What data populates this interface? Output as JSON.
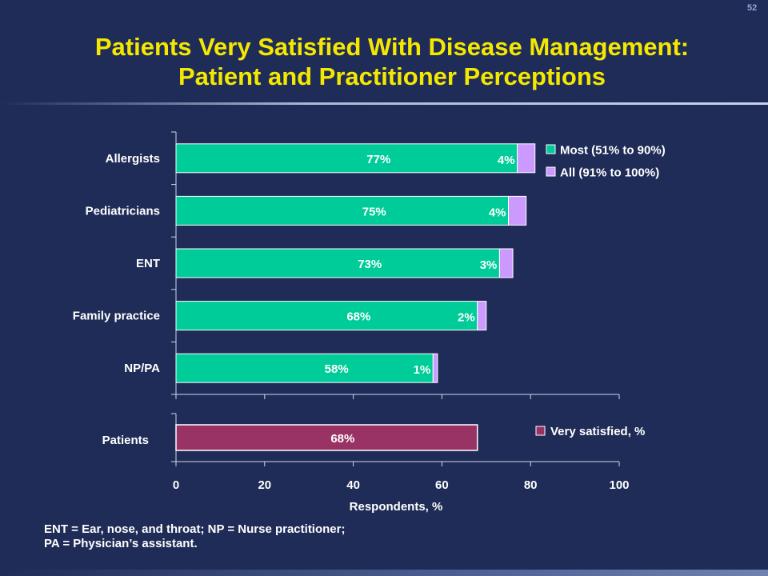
{
  "slide_number": "52",
  "title_line1": "Patients Very Satisfied With Disease Management:",
  "title_line2": "Patient and Practitioner Perceptions",
  "footnote_line1": "ENT = Ear, nose, and throat; NP = Nurse practitioner;",
  "footnote_line2": "PA = Physician’s assistant.",
  "colors": {
    "background": "#1f2c57",
    "title": "#f5e800",
    "most": "#00cc99",
    "all": "#cc99ff",
    "patients": "#993366"
  },
  "chart_data": [
    {
      "type": "bar",
      "orientation": "horizontal",
      "stacked": true,
      "categories": [
        "Allergists",
        "Pediatricians",
        "ENT",
        "Family practice",
        "NP/PA"
      ],
      "series": [
        {
          "name": "Most (51% to 90%)",
          "values": [
            77,
            75,
            73,
            68,
            58
          ],
          "labels": [
            "77%",
            "75%",
            "73%",
            "68%",
            "58%"
          ]
        },
        {
          "name": "All (91% to 100%)",
          "values": [
            4,
            4,
            3,
            2,
            1
          ],
          "labels": [
            "4%",
            "4%",
            "3%",
            "2%",
            "1%"
          ]
        }
      ],
      "xlim": [
        0,
        100
      ],
      "legend_position": "top-right"
    },
    {
      "type": "bar",
      "orientation": "horizontal",
      "categories": [
        "Patients"
      ],
      "series": [
        {
          "name": "Very satisfied, %",
          "values": [
            68
          ],
          "labels": [
            "68%"
          ]
        }
      ],
      "xlim": [
        0,
        100
      ],
      "xlabel": "Respondents, %",
      "xticks": [
        "0",
        "20",
        "40",
        "60",
        "80",
        "100"
      ],
      "legend_position": "right"
    }
  ]
}
